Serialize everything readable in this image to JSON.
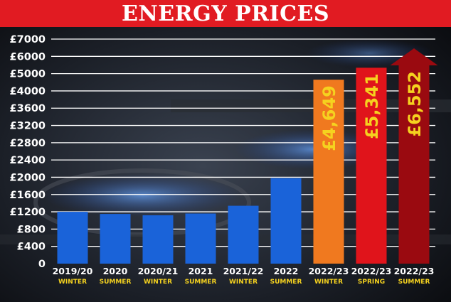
{
  "title": "ENERGY PRICES",
  "colors": {
    "title_bg": "#e11b22",
    "title_text": "#ffffff",
    "highlight_text": "#f5d21f"
  },
  "chart_data": {
    "type": "bar",
    "title": "ENERGY PRICES",
    "categories": [
      {
        "label": "2019/20",
        "season": "WINTER"
      },
      {
        "label": "2020",
        "season": "SUMMER"
      },
      {
        "label": "2020/21",
        "season": "WINTER"
      },
      {
        "label": "2021",
        "season": "SUMMER"
      },
      {
        "label": "2021/22",
        "season": "WINTER"
      },
      {
        "label": "2022",
        "season": "SUMMER"
      },
      {
        "label": "2022/23",
        "season": "WINTER"
      },
      {
        "label": "2022/23",
        "season": "SPRING"
      },
      {
        "label": "2022/23",
        "season": "SUMMER"
      }
    ],
    "values": [
      1200,
      1150,
      1120,
      1160,
      1340,
      1980,
      4649,
      5341,
      6552
    ],
    "data_labels": [
      "",
      "",
      "",
      "",
      "",
      "",
      "£4,649",
      "£5,341",
      "£6,552"
    ],
    "bar_colors": [
      "#1a63d9",
      "#1a63d9",
      "#1a63d9",
      "#1a63d9",
      "#1a63d9",
      "#1a63d9",
      "#f0791f",
      "#e0141b",
      "#9a0a10"
    ],
    "last_bar_arrow": true,
    "yticks": [
      {
        "value": 0,
        "label": "0"
      },
      {
        "value": 400,
        "label": "£400"
      },
      {
        "value": 800,
        "label": "£800"
      },
      {
        "value": 1200,
        "label": "£1200"
      },
      {
        "value": 1600,
        "label": "£1600"
      },
      {
        "value": 2000,
        "label": "£2000"
      },
      {
        "value": 2400,
        "label": "£2400"
      },
      {
        "value": 2800,
        "label": "£2800"
      },
      {
        "value": 3200,
        "label": "£3200"
      },
      {
        "value": 3600,
        "label": "£3600"
      },
      {
        "value": 4000,
        "label": "£4000"
      },
      {
        "value": 5000,
        "label": "£5000"
      },
      {
        "value": 6000,
        "label": "£6000"
      },
      {
        "value": 7000,
        "label": "£7000"
      }
    ],
    "ylim": [
      0,
      7000
    ],
    "axis_scale": "non-linear (400 steps to 4000, then 1000 steps)",
    "grid": true,
    "xlabel": "",
    "ylabel": ""
  }
}
